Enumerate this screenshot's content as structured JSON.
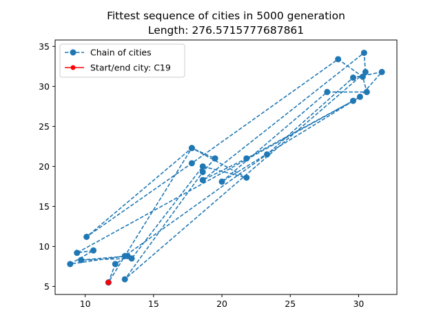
{
  "chart_data": {
    "type": "line",
    "title": "Fittest sequence of cities in 5000 generation",
    "subtitle": "Length: 276.5715777687861",
    "xlabel": "",
    "ylabel": "",
    "xlim": [
      7.8,
      32.8
    ],
    "ylim": [
      4.0,
      35.8
    ],
    "xticks": [
      10,
      15,
      20,
      25,
      30
    ],
    "yticks": [
      5,
      10,
      15,
      20,
      25,
      30,
      35
    ],
    "grid": false,
    "legend_position": "top-left",
    "series": [
      {
        "name": "Chain of cities",
        "color": "#1f77b4",
        "style": "dashed",
        "marker": "circle",
        "points": [
          {
            "x": 11.7,
            "y": 5.5
          },
          {
            "x": 12.2,
            "y": 7.8
          },
          {
            "x": 13.1,
            "y": 8.8
          },
          {
            "x": 9.7,
            "y": 8.3
          },
          {
            "x": 13.4,
            "y": 8.5
          },
          {
            "x": 18.6,
            "y": 20.0
          },
          {
            "x": 21.8,
            "y": 18.6
          },
          {
            "x": 17.8,
            "y": 22.3
          },
          {
            "x": 19.5,
            "y": 21.0
          },
          {
            "x": 18.6,
            "y": 19.3
          },
          {
            "x": 12.9,
            "y": 5.9
          },
          {
            "x": 30.5,
            "y": 31.8
          },
          {
            "x": 30.4,
            "y": 34.2
          },
          {
            "x": 18.6,
            "y": 18.3
          },
          {
            "x": 21.8,
            "y": 21.0
          },
          {
            "x": 29.6,
            "y": 28.2
          },
          {
            "x": 9.4,
            "y": 9.2
          },
          {
            "x": 10.6,
            "y": 9.5
          },
          {
            "x": 8.9,
            "y": 7.8
          },
          {
            "x": 12.9,
            "y": 8.8
          },
          {
            "x": 23.3,
            "y": 21.5
          },
          {
            "x": 29.6,
            "y": 31.1
          },
          {
            "x": 31.7,
            "y": 31.8
          },
          {
            "x": 30.1,
            "y": 28.7
          },
          {
            "x": 20.0,
            "y": 18.1
          },
          {
            "x": 27.7,
            "y": 29.3
          },
          {
            "x": 30.6,
            "y": 29.3
          },
          {
            "x": 30.3,
            "y": 31.2
          },
          {
            "x": 28.5,
            "y": 33.4
          },
          {
            "x": 17.8,
            "y": 20.4
          },
          {
            "x": 10.1,
            "y": 11.2
          },
          {
            "x": 17.8,
            "y": 22.3
          },
          {
            "x": 11.7,
            "y": 5.5
          }
        ]
      },
      {
        "name": "Start/end city: C19",
        "color": "#ff0000",
        "style": "solid",
        "marker": "circle",
        "points": [
          {
            "x": 11.7,
            "y": 5.5
          }
        ]
      }
    ]
  }
}
